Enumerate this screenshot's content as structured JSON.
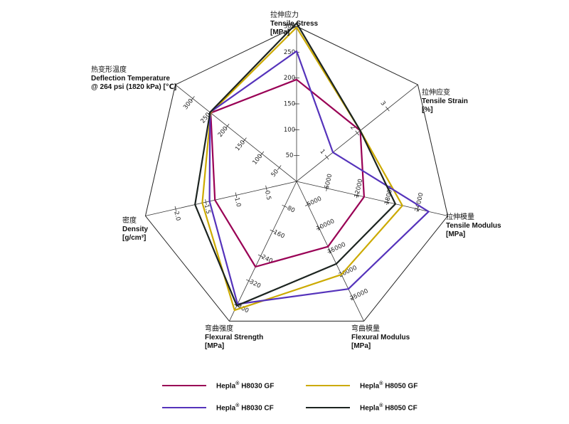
{
  "chart_data": {
    "type": "radar",
    "axes": [
      {
        "key": "tensile_stress",
        "lines": [
          "拉伸应力",
          "Tensile Stress",
          "[MPa]"
        ],
        "min": 0,
        "max": 300,
        "ticks": [
          "50",
          "100",
          "150",
          "200",
          "250",
          "300"
        ],
        "tick_values": [
          50,
          100,
          150,
          200,
          250,
          300
        ]
      },
      {
        "key": "tensile_strain",
        "lines": [
          "拉伸应变",
          "Tensile Strain",
          "[%]"
        ],
        "min": 0,
        "max": 4,
        "ticks": [
          "1",
          "2",
          "3"
        ],
        "tick_values": [
          1,
          2,
          3
        ]
      },
      {
        "key": "tensile_modulus",
        "lines": [
          "拉伸模量",
          "Tensile Modulus",
          "[MPa]"
        ],
        "min": 0,
        "max": 30000,
        "ticks": [
          "6000",
          "12000",
          "18000",
          "24000"
        ],
        "tick_values": [
          6000,
          12000,
          18000,
          24000
        ]
      },
      {
        "key": "flexural_modulus",
        "lines": [
          "弯曲模量",
          "Flexural Modulus",
          "[MPa]"
        ],
        "min": 0,
        "max": 30000,
        "ticks": [
          "5000",
          "10000",
          "15000",
          "20000",
          "25000"
        ],
        "tick_values": [
          5000,
          10000,
          15000,
          20000,
          25000
        ]
      },
      {
        "key": "flexural_strength",
        "lines": [
          "弯曲强度",
          "Flexural Strength",
          "[MPa]"
        ],
        "min": 0,
        "max": 450,
        "ticks": [
          "80",
          "160",
          "240",
          "320",
          "400"
        ],
        "tick_values": [
          80,
          160,
          240,
          320,
          400
        ]
      },
      {
        "key": "density",
        "lines": [
          "密度",
          "Density",
          "[g/cm³]"
        ],
        "min": 0,
        "max": 2.5,
        "ticks": [
          "0.5",
          "1.0",
          "1.5",
          "2.0"
        ],
        "tick_values": [
          0.5,
          1.0,
          1.5,
          2.0
        ]
      },
      {
        "key": "hdt",
        "lines": [
          "热变形温度",
          "Deflection Temperature",
          "@ 264 psi (1820 kPa) [℃]"
        ],
        "min": 0,
        "max": 350,
        "ticks": [
          "50",
          "100",
          "150",
          "200",
          "250",
          "300"
        ],
        "tick_values": [
          50,
          100,
          150,
          200,
          250,
          300
        ]
      }
    ],
    "series": [
      {
        "brand": "Hepla",
        "reg": "®",
        "grade": "H8030 GF",
        "color": "#990055",
        "values": [
          197,
          2.1,
          13400,
          14000,
          275,
          1.35,
          248
        ]
      },
      {
        "brand": "Hepla",
        "reg": "®",
        "grade": "H8050 GF",
        "color": "#ccaa00",
        "values": [
          298,
          2.1,
          21000,
          20000,
          415,
          1.56,
          248
        ]
      },
      {
        "brand": "Hepla",
        "reg": "®",
        "grade": "H8030 CF",
        "color": "#5533bb",
        "values": [
          252,
          1.2,
          26200,
          23100,
          395,
          1.44,
          250
        ]
      },
      {
        "brand": "Hepla",
        "reg": "®",
        "grade": "H8050 CF",
        "color": "#1c2420",
        "values": [
          306,
          2.1,
          19600,
          17700,
          400,
          1.68,
          250
        ]
      }
    ],
    "grid": "concentric heptagons",
    "legend_position": "bottom"
  }
}
